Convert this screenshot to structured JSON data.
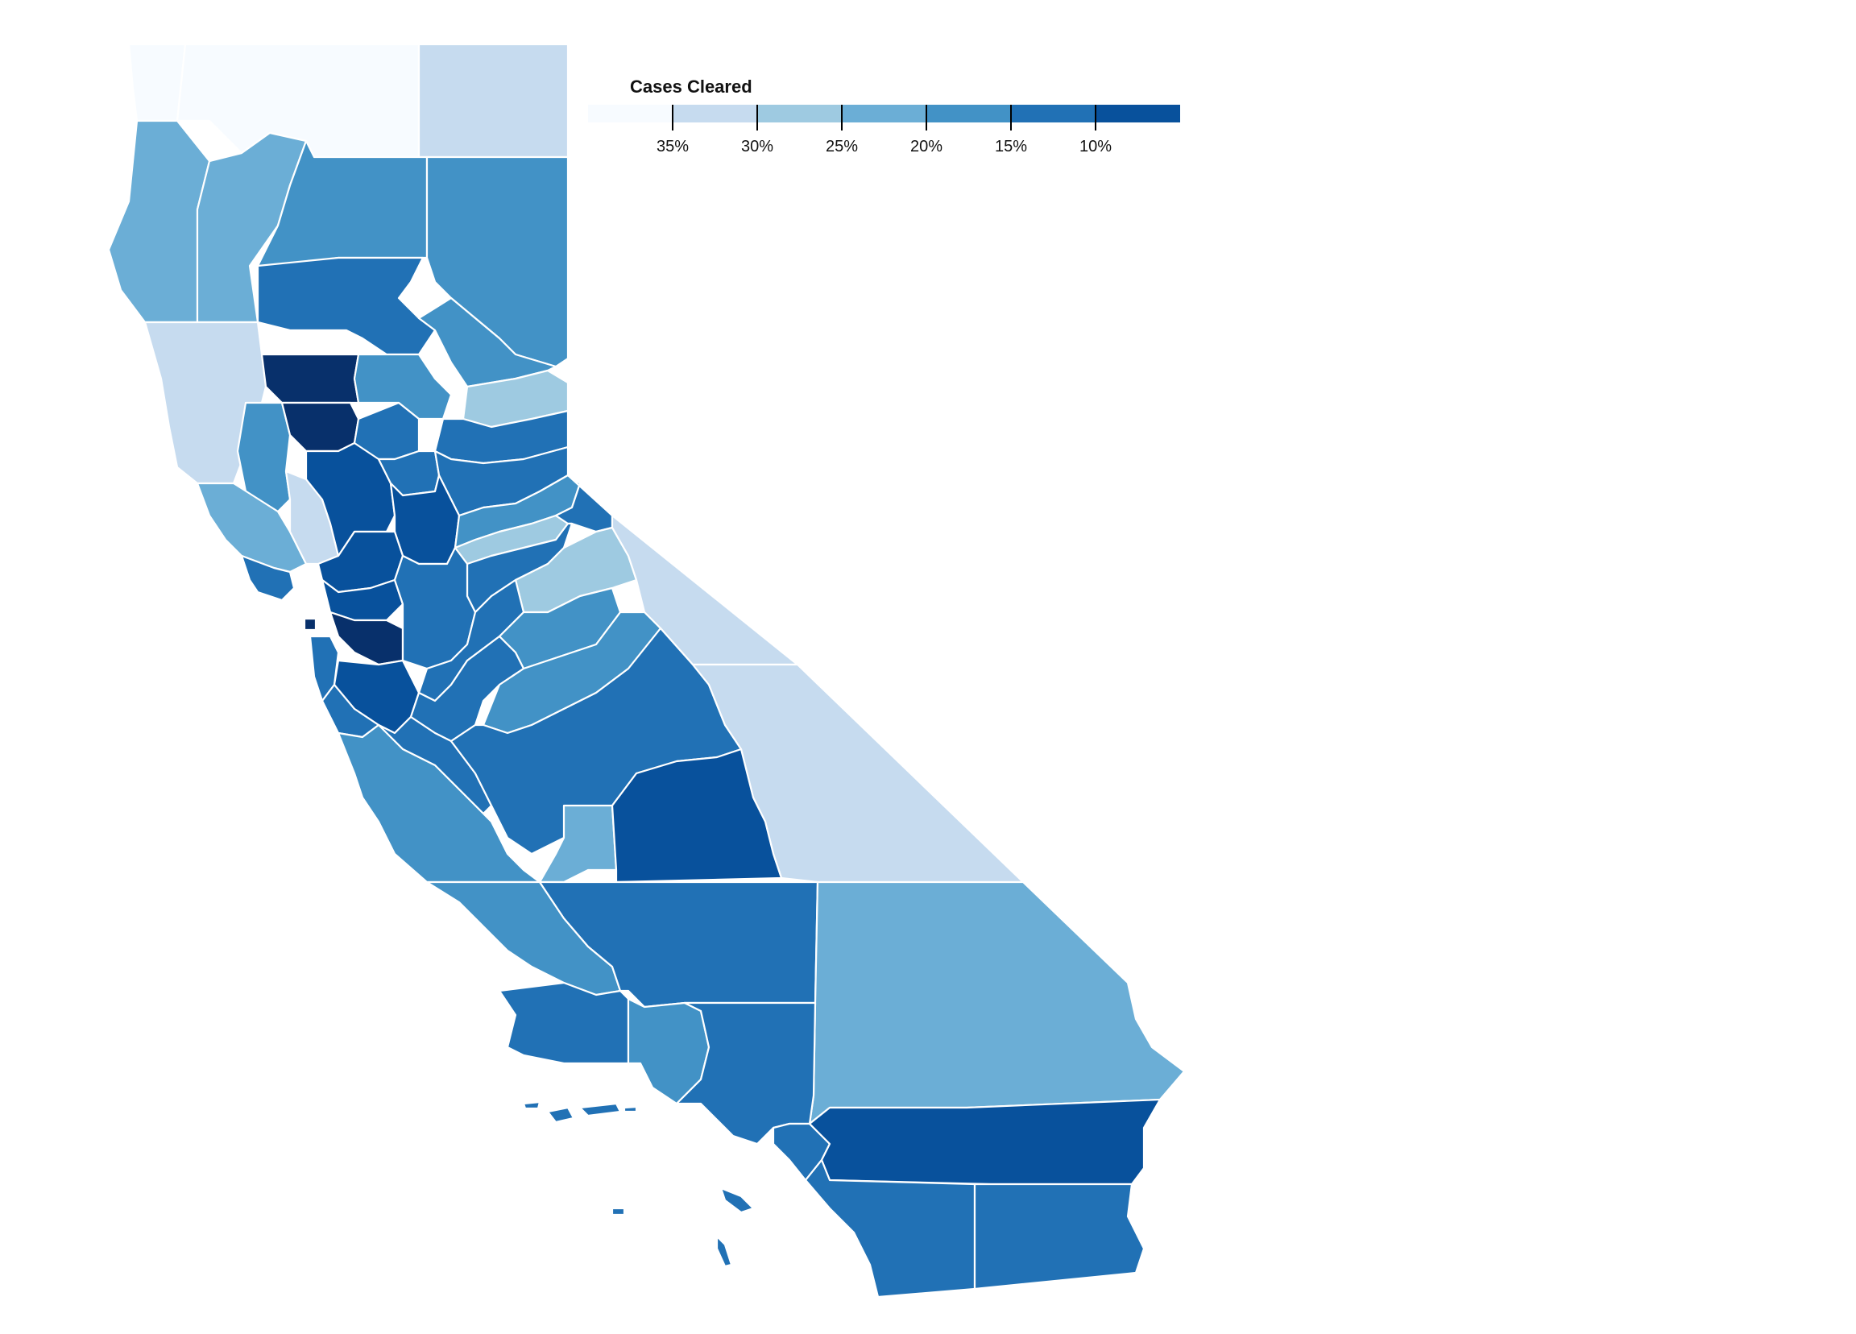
{
  "legend": {
    "title": "Cases Cleared",
    "colors": [
      "#f7fbff",
      "#c6dbef",
      "#9ecae1",
      "#6baed6",
      "#4292c6",
      "#2171b5",
      "#08519c"
    ],
    "ticks": [
      "35%",
      "30%",
      "25%",
      "20%",
      "15%",
      "10%"
    ]
  },
  "map": {
    "subject": "California counties",
    "highlight_color": "#08306b",
    "island_color": "#2171b5"
  }
}
